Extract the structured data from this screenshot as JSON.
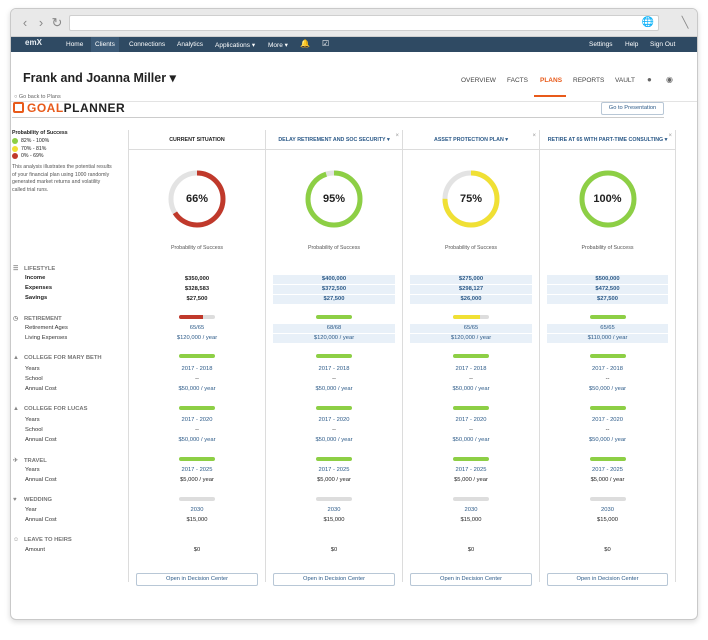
{
  "browser": {
    "back_icon": "chevron-left-icon",
    "forward_icon": "chevron-right-icon",
    "reload_icon": "reload-icon",
    "address": ""
  },
  "nav": {
    "logo": "emX",
    "items": [
      "Home",
      "Clients",
      "Connections",
      "Analytics",
      "Applications ▾",
      "More ▾"
    ],
    "active": "Clients",
    "right": [
      "Settings",
      "Help",
      "Sign Out"
    ]
  },
  "client": {
    "name": "Frank and Joanna Miller ▾"
  },
  "tabs": [
    "OVERVIEW",
    "FACTS",
    "PLANS",
    "REPORTS",
    "VAULT"
  ],
  "active_tab": "PLANS",
  "back_link": "Go back to Plans",
  "title_goal": "GOAL",
  "title_planner": "PLANNER",
  "go_presentation": "Go to Presentation",
  "legend": {
    "title": "Probability of Success",
    "items": [
      {
        "label": "82% - 100%",
        "color": "#8dcf45"
      },
      {
        "label": "70% - 81%",
        "color": "#f0e034"
      },
      {
        "label": "0% - 69%",
        "color": "#c0392b"
      }
    ],
    "desc": "This analysis illustrates the potential results of your financial plan using 1000 randomly generated market returns and volatility called trial runs."
  },
  "sections": {
    "lifestyle": {
      "title": "LIFESTYLE",
      "rows": [
        "Income",
        "Expenses",
        "Savings"
      ]
    },
    "retirement": {
      "title": "RETIREMENT",
      "rows": [
        "Retirement Ages",
        "Living Expenses"
      ]
    },
    "college_mary": {
      "title": "COLLEGE FOR MARY BETH",
      "rows": [
        "Years",
        "School",
        "Annual Cost"
      ]
    },
    "college_lucas": {
      "title": "COLLEGE FOR LUCAS",
      "rows": [
        "Years",
        "School",
        "Annual Cost"
      ]
    },
    "travel": {
      "title": "TRAVEL",
      "rows": [
        "Years",
        "Annual Cost"
      ]
    },
    "wedding": {
      "title": "WEDDING",
      "rows": [
        "Year",
        "Annual Cost"
      ]
    },
    "heirs": {
      "title": "LEAVE TO HEIRS",
      "rows": [
        "Amount"
      ]
    }
  },
  "prob_label": "Probability of Success",
  "decision_btn": "Open in Decision Center",
  "columns": [
    {
      "title": "CURRENT SITUATION",
      "pct": 66,
      "pct_label": "66%",
      "color": "#c0392b",
      "close": false,
      "income": "$350,000",
      "expenses": "$328,583",
      "savings": "$27,500",
      "ret_bar": 0.66,
      "ret_color": "#c0392b",
      "ret_ages": "65/65",
      "living": "$120,000 / year",
      "mb_bar": 1,
      "mb_color": "#8dcf45",
      "mb_years": "2017 - 2018",
      "mb_school": "--",
      "mb_cost": "$50,000 / year",
      "lu_bar": 1,
      "lu_color": "#8dcf45",
      "lu_years": "2017 - 2020",
      "lu_school": "--",
      "lu_cost": "$50,000 / year",
      "tr_bar": 1,
      "tr_color": "#8dcf45",
      "tr_years": "2017 - 2025",
      "tr_cost": "$5,000 / year",
      "we_bar": 1,
      "we_color": "#dddddd",
      "we_year": "2030",
      "we_cost": "$15,000",
      "heirs": "$0"
    },
    {
      "title": "DELAY RETIREMENT AND SOC SECURITY ▾",
      "pct": 95,
      "pct_label": "95%",
      "color": "#8dcf45",
      "close": true,
      "income": "$400,000",
      "expenses": "$372,500",
      "savings": "$27,500",
      "ret_bar": 1,
      "ret_color": "#8dcf45",
      "ret_ages": "68/68",
      "living": "$120,000 / year",
      "mb_bar": 1,
      "mb_color": "#8dcf45",
      "mb_years": "2017 - 2018",
      "mb_school": "--",
      "mb_cost": "$50,000 / year",
      "lu_bar": 1,
      "lu_color": "#8dcf45",
      "lu_years": "2017 - 2020",
      "lu_school": "--",
      "lu_cost": "$50,000 / year",
      "tr_bar": 1,
      "tr_color": "#8dcf45",
      "tr_years": "2017 - 2025",
      "tr_cost": "$5,000 / year",
      "we_bar": 1,
      "we_color": "#dddddd",
      "we_year": "2030",
      "we_cost": "$15,000",
      "heirs": "$0"
    },
    {
      "title": "ASSET PROTECTION PLAN ▾",
      "pct": 75,
      "pct_label": "75%",
      "color": "#f0e034",
      "close": true,
      "income": "$275,000",
      "expenses": "$298,127",
      "savings": "$26,000",
      "ret_bar": 0.75,
      "ret_color": "#f0e034",
      "ret_ages": "65/65",
      "living": "$120,000 / year",
      "mb_bar": 1,
      "mb_color": "#8dcf45",
      "mb_years": "2017 - 2018",
      "mb_school": "--",
      "mb_cost": "$50,000 / year",
      "lu_bar": 1,
      "lu_color": "#8dcf45",
      "lu_years": "2017 - 2020",
      "lu_school": "--",
      "lu_cost": "$50,000 / year",
      "tr_bar": 1,
      "tr_color": "#8dcf45",
      "tr_years": "2017 - 2025",
      "tr_cost": "$5,000 / year",
      "we_bar": 1,
      "we_color": "#dddddd",
      "we_year": "2030",
      "we_cost": "$15,000",
      "heirs": "$0"
    },
    {
      "title": "RETIRE AT 65 WITH PART-TIME CONSULTING ▾",
      "pct": 100,
      "pct_label": "100%",
      "color": "#8dcf45",
      "close": true,
      "income": "$500,000",
      "expenses": "$472,500",
      "savings": "$27,500",
      "ret_bar": 1,
      "ret_color": "#8dcf45",
      "ret_ages": "65/65",
      "living": "$110,000 / year",
      "mb_bar": 1,
      "mb_color": "#8dcf45",
      "mb_years": "2017 - 2018",
      "mb_school": "--",
      "mb_cost": "$50,000 / year",
      "lu_bar": 1,
      "lu_color": "#8dcf45",
      "lu_years": "2017 - 2020",
      "lu_school": "--",
      "lu_cost": "$50,000 / year",
      "tr_bar": 1,
      "tr_color": "#8dcf45",
      "tr_years": "2017 - 2025",
      "tr_cost": "$5,000 / year",
      "we_bar": 1,
      "we_color": "#dddddd",
      "we_year": "2030",
      "we_cost": "$15,000",
      "heirs": "$0"
    }
  ]
}
